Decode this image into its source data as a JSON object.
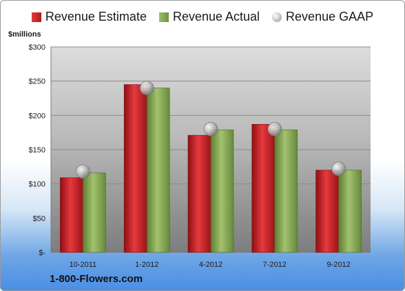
{
  "colors": {
    "estimate": "#c8222a",
    "actual": "#86a955",
    "gaap": "#b0b0b0"
  },
  "legend": {
    "estimate": "Revenue Estimate",
    "actual": "Revenue Actual",
    "gaap": "Revenue GAAP"
  },
  "unit_label": "$millions",
  "brand": "1-800-Flowers.com",
  "chart_data": {
    "type": "bar",
    "title": "",
    "xlabel": "",
    "ylabel": "$millions",
    "ylim": [
      0,
      300
    ],
    "yticks": [
      0,
      50,
      100,
      150,
      200,
      250,
      300
    ],
    "ytick_labels": [
      "$-",
      "$50",
      "$100",
      "$150",
      "$200",
      "$250",
      "$300"
    ],
    "categories": [
      "10-2011",
      "1-2012",
      "4-2012",
      "7-2012",
      "9-2012"
    ],
    "grid": true,
    "legend_position": "top",
    "series": [
      {
        "name": "Revenue Estimate",
        "type": "bar",
        "values": [
          109,
          245,
          171,
          187,
          120
        ]
      },
      {
        "name": "Revenue Actual",
        "type": "bar",
        "values": [
          116,
          240,
          179,
          179,
          120
        ]
      },
      {
        "name": "Revenue GAAP",
        "type": "scatter",
        "values": [
          118,
          240,
          180,
          180,
          122
        ]
      }
    ]
  }
}
